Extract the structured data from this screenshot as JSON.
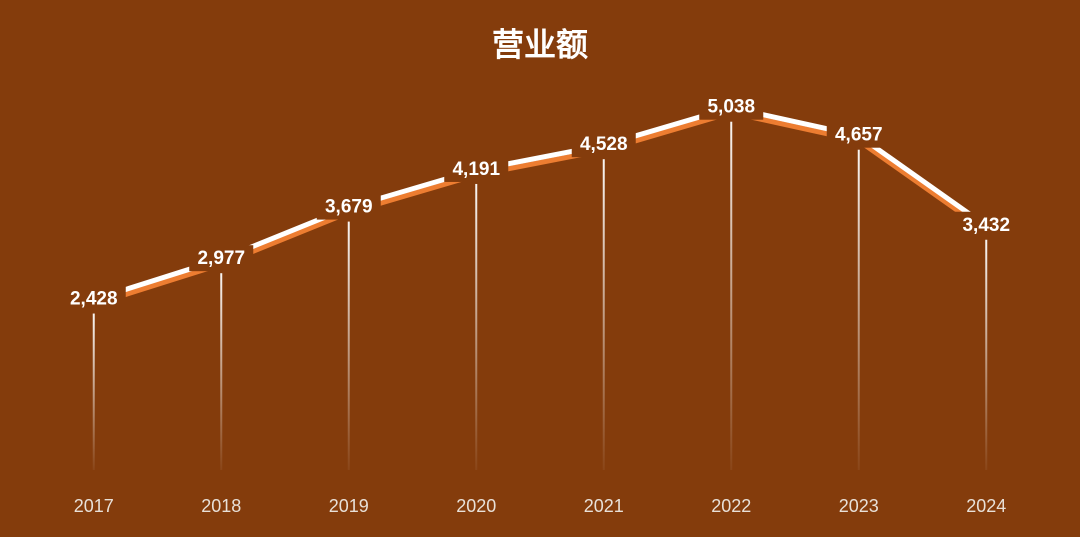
{
  "chart_data": {
    "type": "line",
    "title": "营业额",
    "categories": [
      "2017",
      "2018",
      "2019",
      "2020",
      "2021",
      "2022",
      "2023",
      "2024"
    ],
    "series": [
      {
        "color": "#ffffff",
        "shadow_color": "#ed7d31",
        "values": [
          2428,
          2977,
          3679,
          4191,
          4528,
          5038,
          4657,
          3432
        ],
        "value_labels": [
          "2,428",
          "2,977",
          "3,679",
          "4,191",
          "4,528",
          "5,038",
          "4,657",
          "3,432"
        ]
      }
    ],
    "ylim": [
      0,
      6000
    ],
    "background": "#843c0c"
  }
}
